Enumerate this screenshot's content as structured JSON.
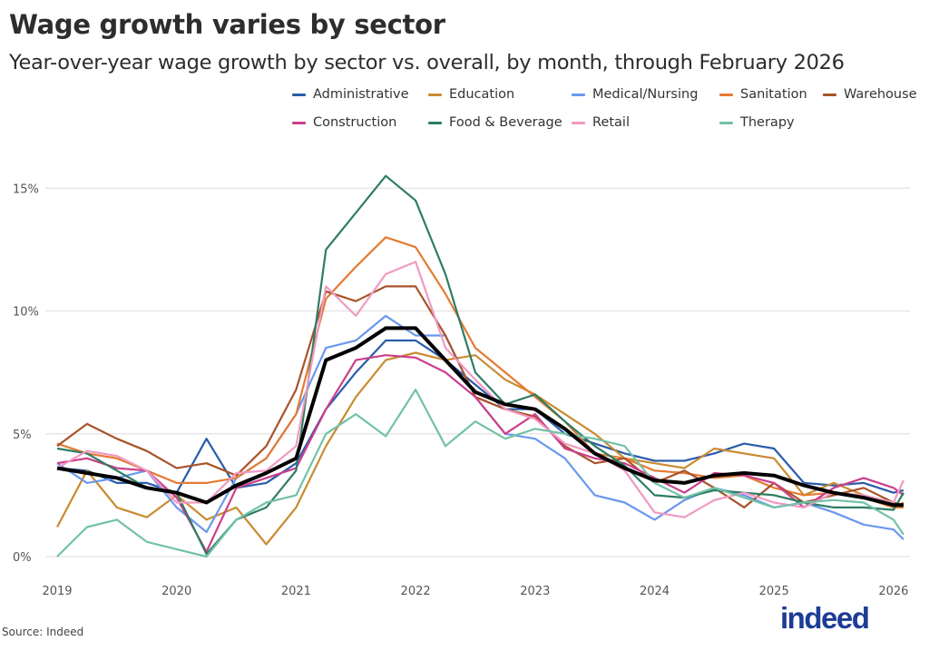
{
  "title": "Wage growth varies by sector",
  "subtitle": "Year-over-year wage growth by sector vs. overall, by month, through February 2026",
  "source": "Source: Indeed",
  "logo_text": "indeed",
  "chart_data": {
    "type": "line",
    "title": "Wage growth varies by sector",
    "subtitle": "Year-over-year wage growth by sector vs. overall, by month, through February 2026",
    "xlabel": "",
    "ylabel": "",
    "x_ticks": [
      "2019",
      "2020",
      "2021",
      "2022",
      "2023",
      "2024",
      "2025",
      "2026"
    ],
    "y_ticks": [
      "0%",
      "5%",
      "10%",
      "15%"
    ],
    "ylim": [
      0,
      16
    ],
    "xlim": [
      "2019-01",
      "2026-02"
    ],
    "grid": "horizontal",
    "legend_position": "top-right",
    "x": [
      "2019-01",
      "2019-04",
      "2019-07",
      "2019-10",
      "2020-01",
      "2020-04",
      "2020-07",
      "2020-10",
      "2021-01",
      "2021-04",
      "2021-07",
      "2021-10",
      "2022-01",
      "2022-04",
      "2022-07",
      "2022-10",
      "2023-01",
      "2023-04",
      "2023-07",
      "2023-10",
      "2024-01",
      "2024-04",
      "2024-07",
      "2024-10",
      "2025-01",
      "2025-04",
      "2025-07",
      "2025-10",
      "2026-01",
      "2026-02"
    ],
    "series": [
      {
        "name": "Administrative",
        "color": "#2a5caa",
        "values": [
          3.6,
          3.5,
          3.0,
          3.0,
          2.6,
          4.8,
          2.8,
          3.0,
          3.8,
          6.0,
          7.5,
          8.8,
          8.8,
          8.0,
          7.0,
          6.0,
          6.0,
          5.0,
          4.6,
          4.2,
          3.9,
          3.9,
          4.2,
          4.6,
          4.4,
          3.0,
          2.9,
          3.0,
          2.6,
          2.7
        ]
      },
      {
        "name": "Education",
        "color": "#c98b31",
        "values": [
          1.2,
          3.5,
          2.0,
          1.6,
          2.5,
          1.5,
          2.0,
          0.5,
          2.0,
          4.5,
          6.5,
          8.0,
          8.3,
          8.0,
          8.2,
          7.2,
          6.6,
          5.8,
          5.0,
          4.0,
          3.8,
          3.6,
          4.4,
          4.2,
          4.0,
          2.5,
          3.0,
          2.5,
          2.0,
          2.2
        ]
      },
      {
        "name": "Medical/Nursing",
        "color": "#6a98ee",
        "values": [
          3.8,
          3.0,
          3.2,
          3.5,
          2.0,
          1.0,
          3.2,
          4.0,
          5.8,
          8.5,
          8.8,
          9.8,
          9.0,
          9.0,
          6.5,
          5.0,
          4.8,
          4.0,
          2.5,
          2.2,
          1.5,
          2.3,
          2.8,
          2.5,
          2.0,
          2.2,
          1.8,
          1.3,
          1.1,
          0.7
        ]
      },
      {
        "name": "Sanitation",
        "color": "#e57b33",
        "values": [
          4.6,
          4.2,
          4.0,
          3.5,
          3.0,
          3.0,
          3.2,
          4.0,
          5.8,
          10.5,
          11.8,
          13.0,
          12.6,
          10.7,
          8.5,
          7.5,
          6.5,
          5.5,
          4.2,
          4.0,
          3.5,
          3.4,
          3.2,
          3.3,
          2.8,
          2.5,
          2.6,
          2.4,
          2.0,
          2.0
        ]
      },
      {
        "name": "Warehouse",
        "color": "#a9532a",
        "values": [
          4.5,
          5.4,
          4.8,
          4.3,
          3.6,
          3.8,
          3.3,
          4.5,
          6.8,
          10.8,
          10.4,
          11.0,
          11.0,
          9.0,
          6.5,
          6.0,
          5.7,
          4.5,
          3.8,
          4.0,
          3.0,
          3.5,
          2.8,
          2.0,
          3.0,
          2.2,
          2.5,
          2.8,
          2.2,
          2.1
        ]
      },
      {
        "name": "Construction",
        "color": "#cb3f8c",
        "values": [
          3.8,
          4.0,
          3.6,
          3.5,
          2.4,
          0.2,
          2.8,
          3.2,
          3.6,
          6.0,
          8.0,
          8.2,
          8.1,
          7.5,
          6.5,
          5.0,
          5.8,
          4.4,
          4.0,
          3.8,
          3.2,
          2.6,
          3.4,
          3.3,
          3.0,
          2.0,
          2.8,
          3.2,
          2.8,
          2.5
        ]
      },
      {
        "name": "Food & Beverage",
        "color": "#2e7d63",
        "values": [
          4.4,
          4.2,
          3.5,
          2.8,
          2.6,
          0.1,
          1.5,
          2.0,
          3.5,
          12.5,
          14.0,
          15.5,
          14.5,
          11.5,
          7.5,
          6.2,
          6.6,
          5.5,
          4.5,
          3.7,
          2.5,
          2.4,
          2.7,
          2.6,
          2.5,
          2.2,
          2.0,
          2.0,
          1.9,
          2.6
        ]
      },
      {
        "name": "Retail",
        "color": "#f09ac2",
        "values": [
          3.6,
          4.3,
          4.1,
          3.5,
          2.2,
          2.2,
          3.4,
          3.5,
          4.5,
          11.0,
          9.8,
          11.5,
          12.0,
          8.5,
          7.2,
          6.0,
          5.6,
          4.6,
          4.2,
          3.5,
          1.8,
          1.6,
          2.3,
          2.6,
          2.2,
          2.0,
          2.6,
          2.5,
          2.2,
          3.1
        ]
      },
      {
        "name": "Therapy",
        "color": "#72c2a8",
        "values": [
          0.0,
          1.2,
          1.5,
          0.6,
          0.3,
          0.0,
          1.5,
          2.2,
          2.5,
          5.0,
          5.8,
          4.9,
          6.8,
          4.5,
          5.5,
          4.8,
          5.2,
          5.0,
          4.8,
          4.5,
          3.0,
          2.4,
          2.8,
          2.4,
          2.0,
          2.2,
          2.3,
          2.2,
          1.5,
          0.9
        ]
      },
      {
        "color": "#000000",
        "values": [
          3.6,
          3.4,
          3.2,
          2.8,
          2.6,
          2.2,
          2.9,
          3.4,
          4.0,
          8.0,
          8.5,
          9.3,
          9.3,
          8.0,
          6.7,
          6.2,
          6.0,
          5.2,
          4.2,
          3.6,
          3.1,
          3.0,
          3.3,
          3.4,
          3.3,
          2.9,
          2.6,
          2.4,
          2.1,
          2.1
        ]
      }
    ]
  }
}
